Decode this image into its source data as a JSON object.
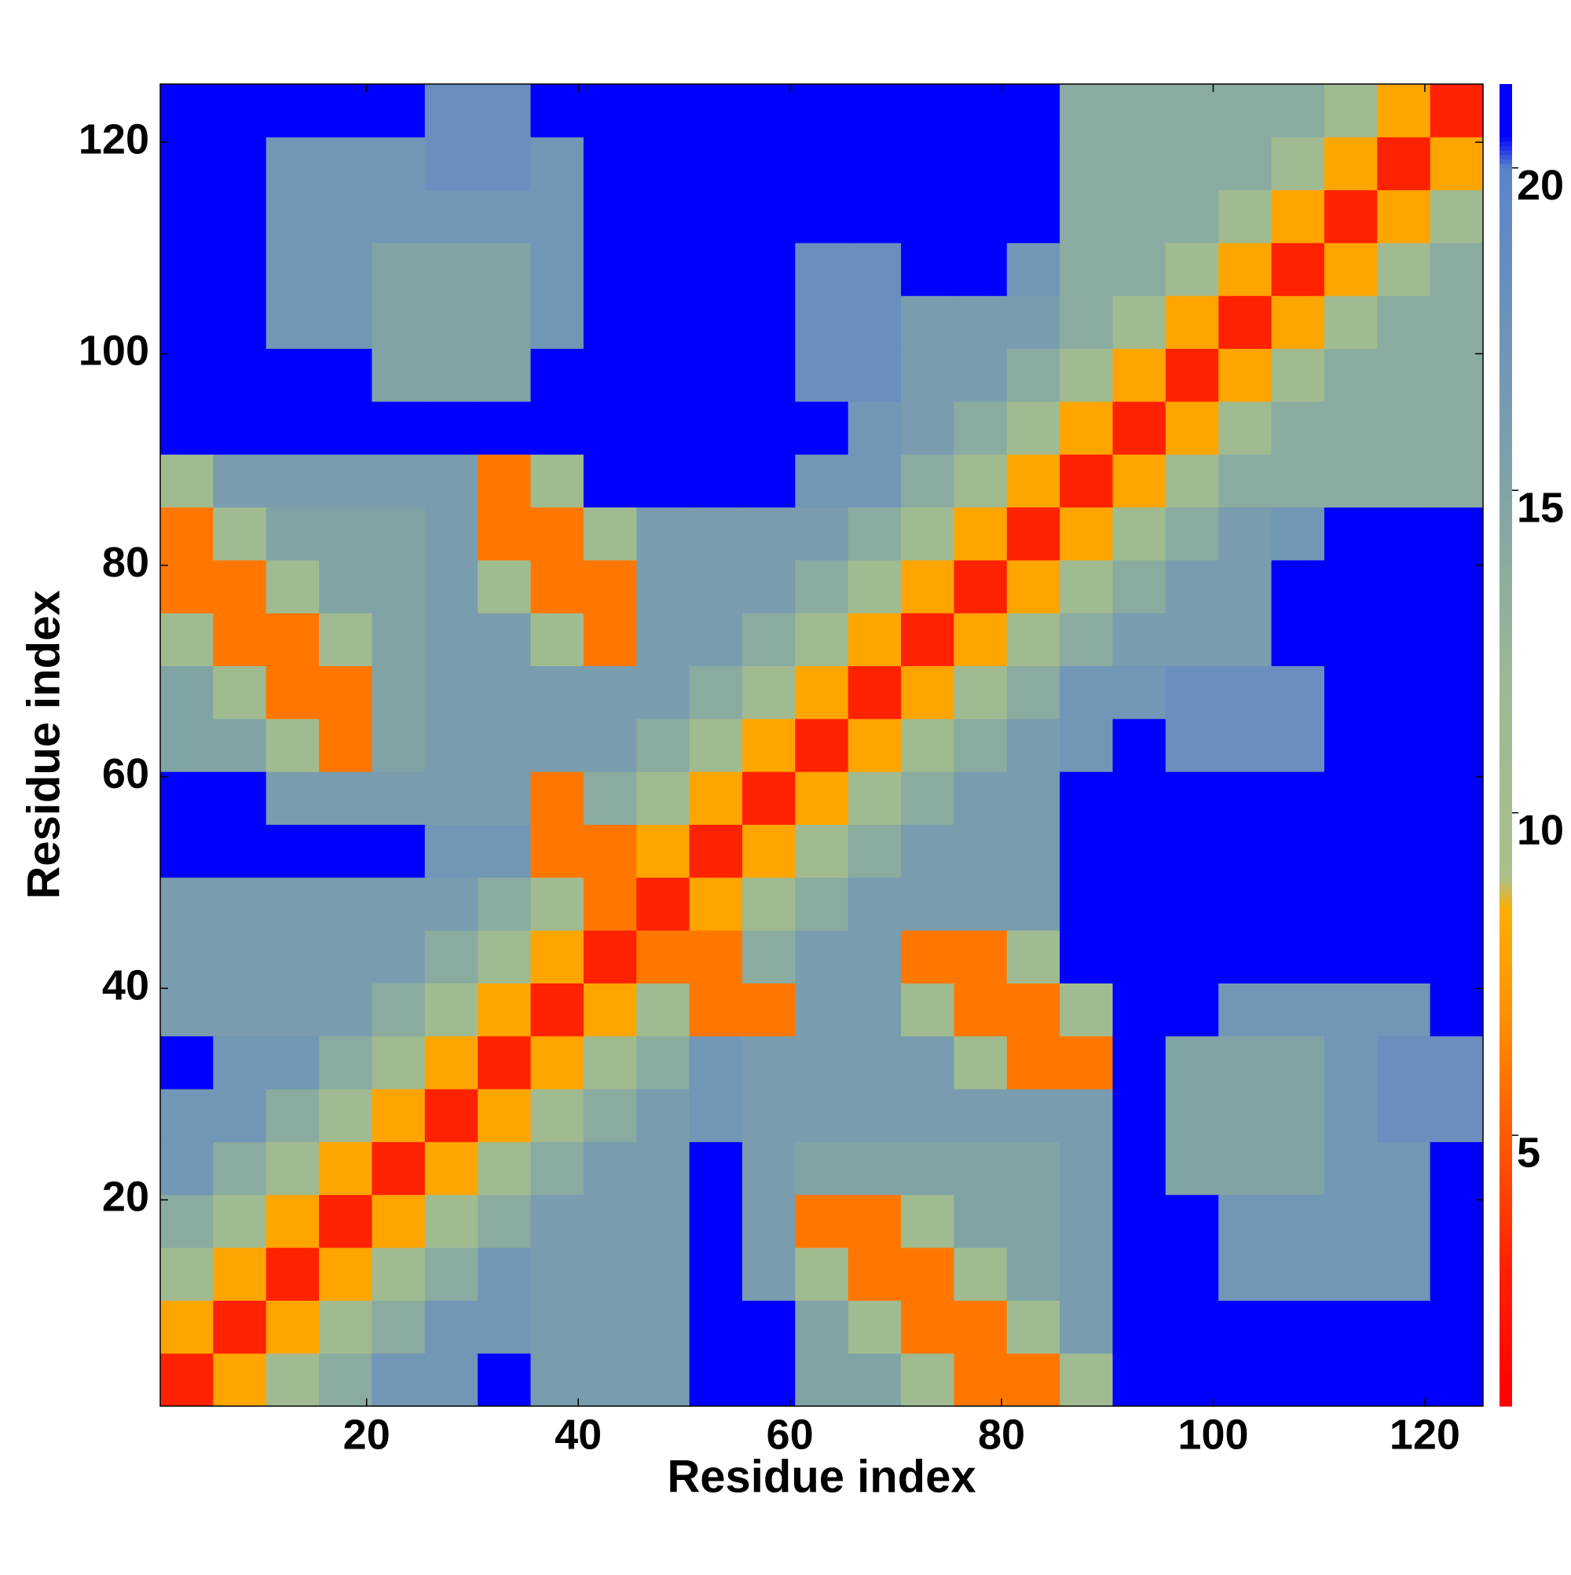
{
  "chart_data": {
    "type": "heatmap",
    "xlabel": "Residue index",
    "ylabel": "Residue index",
    "xbins": [
      0.5,
      5.5,
      10.5,
      15.5,
      20.5,
      25.5,
      30.5,
      35.5,
      40.5,
      45.5,
      50.5,
      55.5,
      60.5,
      65.5,
      70.5,
      75.5,
      80.5,
      85.5,
      90.5,
      95.5,
      100.5,
      105.5,
      110.5,
      115.5,
      120.5,
      125.5
    ],
    "ybins": [
      0.5,
      5.5,
      10.5,
      15.5,
      20.5,
      25.5,
      30.5,
      35.5,
      40.5,
      45.5,
      50.5,
      55.5,
      60.5,
      65.5,
      70.5,
      75.5,
      80.5,
      85.5,
      90.5,
      95.5,
      100.5,
      105.5,
      110.5,
      115.5,
      120.5,
      125.5
    ],
    "xlim": [
      0.5,
      125.5
    ],
    "ylim": [
      0.5,
      125.5
    ],
    "xticks": [
      20,
      40,
      60,
      80,
      100,
      120
    ],
    "yticks": [
      20,
      40,
      60,
      80,
      100,
      120
    ],
    "zlim": [
      0.8,
      21.3
    ],
    "zticks": [
      5,
      10,
      15,
      20
    ],
    "colormap": [
      {
        "value": 0.8,
        "color": "#ff0000"
      },
      {
        "value": 3,
        "color": "#ff2200"
      },
      {
        "value": 5,
        "color": "#ff5a00"
      },
      {
        "value": 7,
        "color": "#ff9400"
      },
      {
        "value": 8.5,
        "color": "#ffae00"
      },
      {
        "value": 9,
        "color": "#a9c08c"
      },
      {
        "value": 12,
        "color": "#9db894"
      },
      {
        "value": 15,
        "color": "#80a4a6"
      },
      {
        "value": 18,
        "color": "#6a8fbe"
      },
      {
        "value": 20,
        "color": "#5a84c8"
      },
      {
        "value": 20.5,
        "color": "#0000ff"
      },
      {
        "value": 21.3,
        "color": "#0000ff"
      }
    ],
    "z": [
      [
        3,
        8,
        11,
        14,
        17,
        17,
        21,
        16,
        16,
        16,
        21,
        21,
        15,
        15,
        11,
        6,
        6,
        11,
        21,
        21,
        21,
        21,
        21,
        21,
        21
      ],
      [
        8,
        3,
        8,
        11,
        14,
        17,
        17,
        16,
        16,
        16,
        21,
        21,
        15,
        11,
        6,
        6,
        11,
        16,
        21,
        21,
        21,
        21,
        21,
        21,
        21
      ],
      [
        11,
        8,
        3,
        8,
        11,
        14,
        17,
        16,
        16,
        16,
        21,
        16,
        11,
        6,
        6,
        11,
        15,
        16,
        21,
        21,
        17,
        17,
        17,
        17,
        21
      ],
      [
        14,
        11,
        8,
        3,
        8,
        11,
        14,
        16,
        16,
        16,
        21,
        16,
        6,
        6,
        11,
        15,
        15,
        16,
        21,
        21,
        17,
        17,
        17,
        17,
        21
      ],
      [
        17,
        14,
        11,
        8,
        3,
        8,
        11,
        14,
        16,
        16,
        21,
        16,
        15,
        15,
        15,
        15,
        15,
        16,
        21,
        15,
        15,
        15,
        17,
        17,
        21
      ],
      [
        17,
        17,
        14,
        11,
        8,
        3,
        8,
        11,
        14,
        16,
        17,
        16,
        16,
        16,
        16,
        16,
        16,
        16,
        21,
        15,
        15,
        15,
        17,
        18,
        18
      ],
      [
        21,
        17,
        17,
        14,
        11,
        8,
        3,
        8,
        11,
        14,
        17,
        16,
        16,
        16,
        16,
        11,
        6,
        6,
        21,
        15,
        15,
        15,
        17,
        18,
        18
      ],
      [
        16,
        16,
        16,
        16,
        14,
        11,
        8,
        3,
        8,
        11,
        6,
        6,
        16,
        16,
        11,
        6,
        6,
        11,
        21,
        21,
        17,
        17,
        17,
        17,
        21
      ],
      [
        16,
        16,
        16,
        16,
        16,
        14,
        11,
        8,
        3,
        6,
        6,
        14,
        16,
        16,
        6,
        6,
        11,
        21,
        21,
        21,
        21,
        21,
        21,
        21,
        21
      ],
      [
        16,
        16,
        16,
        16,
        16,
        16,
        14,
        11,
        6,
        3,
        8,
        11,
        14,
        16,
        16,
        16,
        16,
        21,
        21,
        21,
        21,
        21,
        21,
        21,
        21
      ],
      [
        21,
        21,
        21,
        21,
        21,
        17,
        17,
        6,
        6,
        8,
        3,
        8,
        11,
        14,
        16,
        16,
        16,
        21,
        21,
        21,
        21,
        21,
        21,
        21,
        21
      ],
      [
        21,
        21,
        16,
        16,
        16,
        16,
        16,
        6,
        14,
        11,
        8,
        3,
        8,
        11,
        14,
        16,
        16,
        21,
        21,
        21,
        21,
        21,
        21,
        21,
        21
      ],
      [
        15,
        15,
        11,
        6,
        15,
        16,
        16,
        16,
        16,
        14,
        11,
        8,
        3,
        8,
        11,
        14,
        16,
        17,
        21,
        18,
        18,
        18,
        21,
        21,
        21
      ],
      [
        15,
        11,
        6,
        6,
        15,
        16,
        16,
        16,
        16,
        16,
        14,
        11,
        8,
        3,
        8,
        11,
        14,
        17,
        17,
        18,
        18,
        18,
        21,
        21,
        21
      ],
      [
        11,
        6,
        6,
        11,
        15,
        16,
        16,
        11,
        6,
        16,
        16,
        14,
        11,
        8,
        3,
        8,
        11,
        14,
        16,
        16,
        16,
        21,
        21,
        21,
        21
      ],
      [
        6,
        6,
        11,
        15,
        15,
        16,
        11,
        6,
        6,
        16,
        16,
        16,
        14,
        11,
        8,
        3,
        8,
        11,
        14,
        16,
        16,
        21,
        21,
        21,
        21
      ],
      [
        6,
        11,
        15,
        15,
        15,
        16,
        6,
        6,
        11,
        16,
        16,
        16,
        16,
        14,
        11,
        8,
        3,
        8,
        11,
        14,
        16,
        17,
        21,
        21,
        21
      ],
      [
        11,
        16,
        16,
        16,
        16,
        16,
        6,
        11,
        21,
        21,
        21,
        21,
        17,
        17,
        14,
        11,
        8,
        3,
        8,
        11,
        14,
        14,
        14,
        14,
        14
      ],
      [
        21,
        21,
        21,
        21,
        21,
        21,
        21,
        21,
        21,
        21,
        21,
        21,
        21,
        17,
        16,
        14,
        11,
        8,
        3,
        8,
        11,
        14,
        14,
        14,
        14
      ],
      [
        21,
        21,
        21,
        21,
        15,
        15,
        15,
        21,
        21,
        21,
        21,
        21,
        18,
        18,
        16,
        16,
        14,
        11,
        8,
        3,
        8,
        11,
        14,
        14,
        14
      ],
      [
        21,
        21,
        17,
        17,
        15,
        15,
        15,
        17,
        21,
        21,
        21,
        21,
        18,
        18,
        16,
        16,
        16,
        14,
        11,
        8,
        3,
        8,
        11,
        14,
        14
      ],
      [
        21,
        21,
        17,
        17,
        15,
        15,
        15,
        17,
        21,
        21,
        21,
        21,
        18,
        18,
        21,
        21,
        17,
        14,
        14,
        11,
        8,
        3,
        8,
        11,
        14
      ],
      [
        21,
        21,
        17,
        17,
        17,
        17,
        17,
        17,
        21,
        21,
        21,
        21,
        21,
        21,
        21,
        21,
        21,
        14,
        14,
        14,
        11,
        8,
        3,
        8,
        11
      ],
      [
        21,
        21,
        17,
        17,
        17,
        18,
        18,
        17,
        21,
        21,
        21,
        21,
        21,
        21,
        21,
        21,
        21,
        14,
        14,
        14,
        14,
        11,
        8,
        3,
        8
      ],
      [
        21,
        21,
        21,
        21,
        21,
        18,
        18,
        21,
        21,
        21,
        21,
        21,
        21,
        21,
        21,
        21,
        21,
        14,
        14,
        14,
        14,
        14,
        11,
        8,
        3
      ]
    ]
  }
}
